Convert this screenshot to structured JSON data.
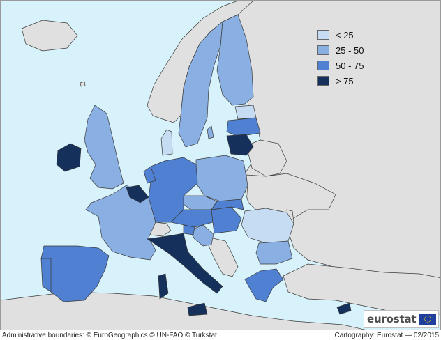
{
  "legend": {
    "items": [
      {
        "label": "< 25",
        "color": "#c6dcf2"
      },
      {
        "label": "25 - 50",
        "color": "#8ab0e3"
      },
      {
        "label": "50 - 75",
        "color": "#4f80d1"
      },
      {
        "label": "> 75",
        "color": "#16305c"
      }
    ]
  },
  "colors": {
    "sea": "#d7f2fb",
    "non_eu_land": "#e0e0e0",
    "border": "#3a3a3a"
  },
  "logo": {
    "text": "eurostat"
  },
  "footer": {
    "left": "Administrative boundaries: © EuroGeographics © UN-FAO © Turkstat",
    "right": "Cartography: Eurostat — 02/2015"
  }
}
